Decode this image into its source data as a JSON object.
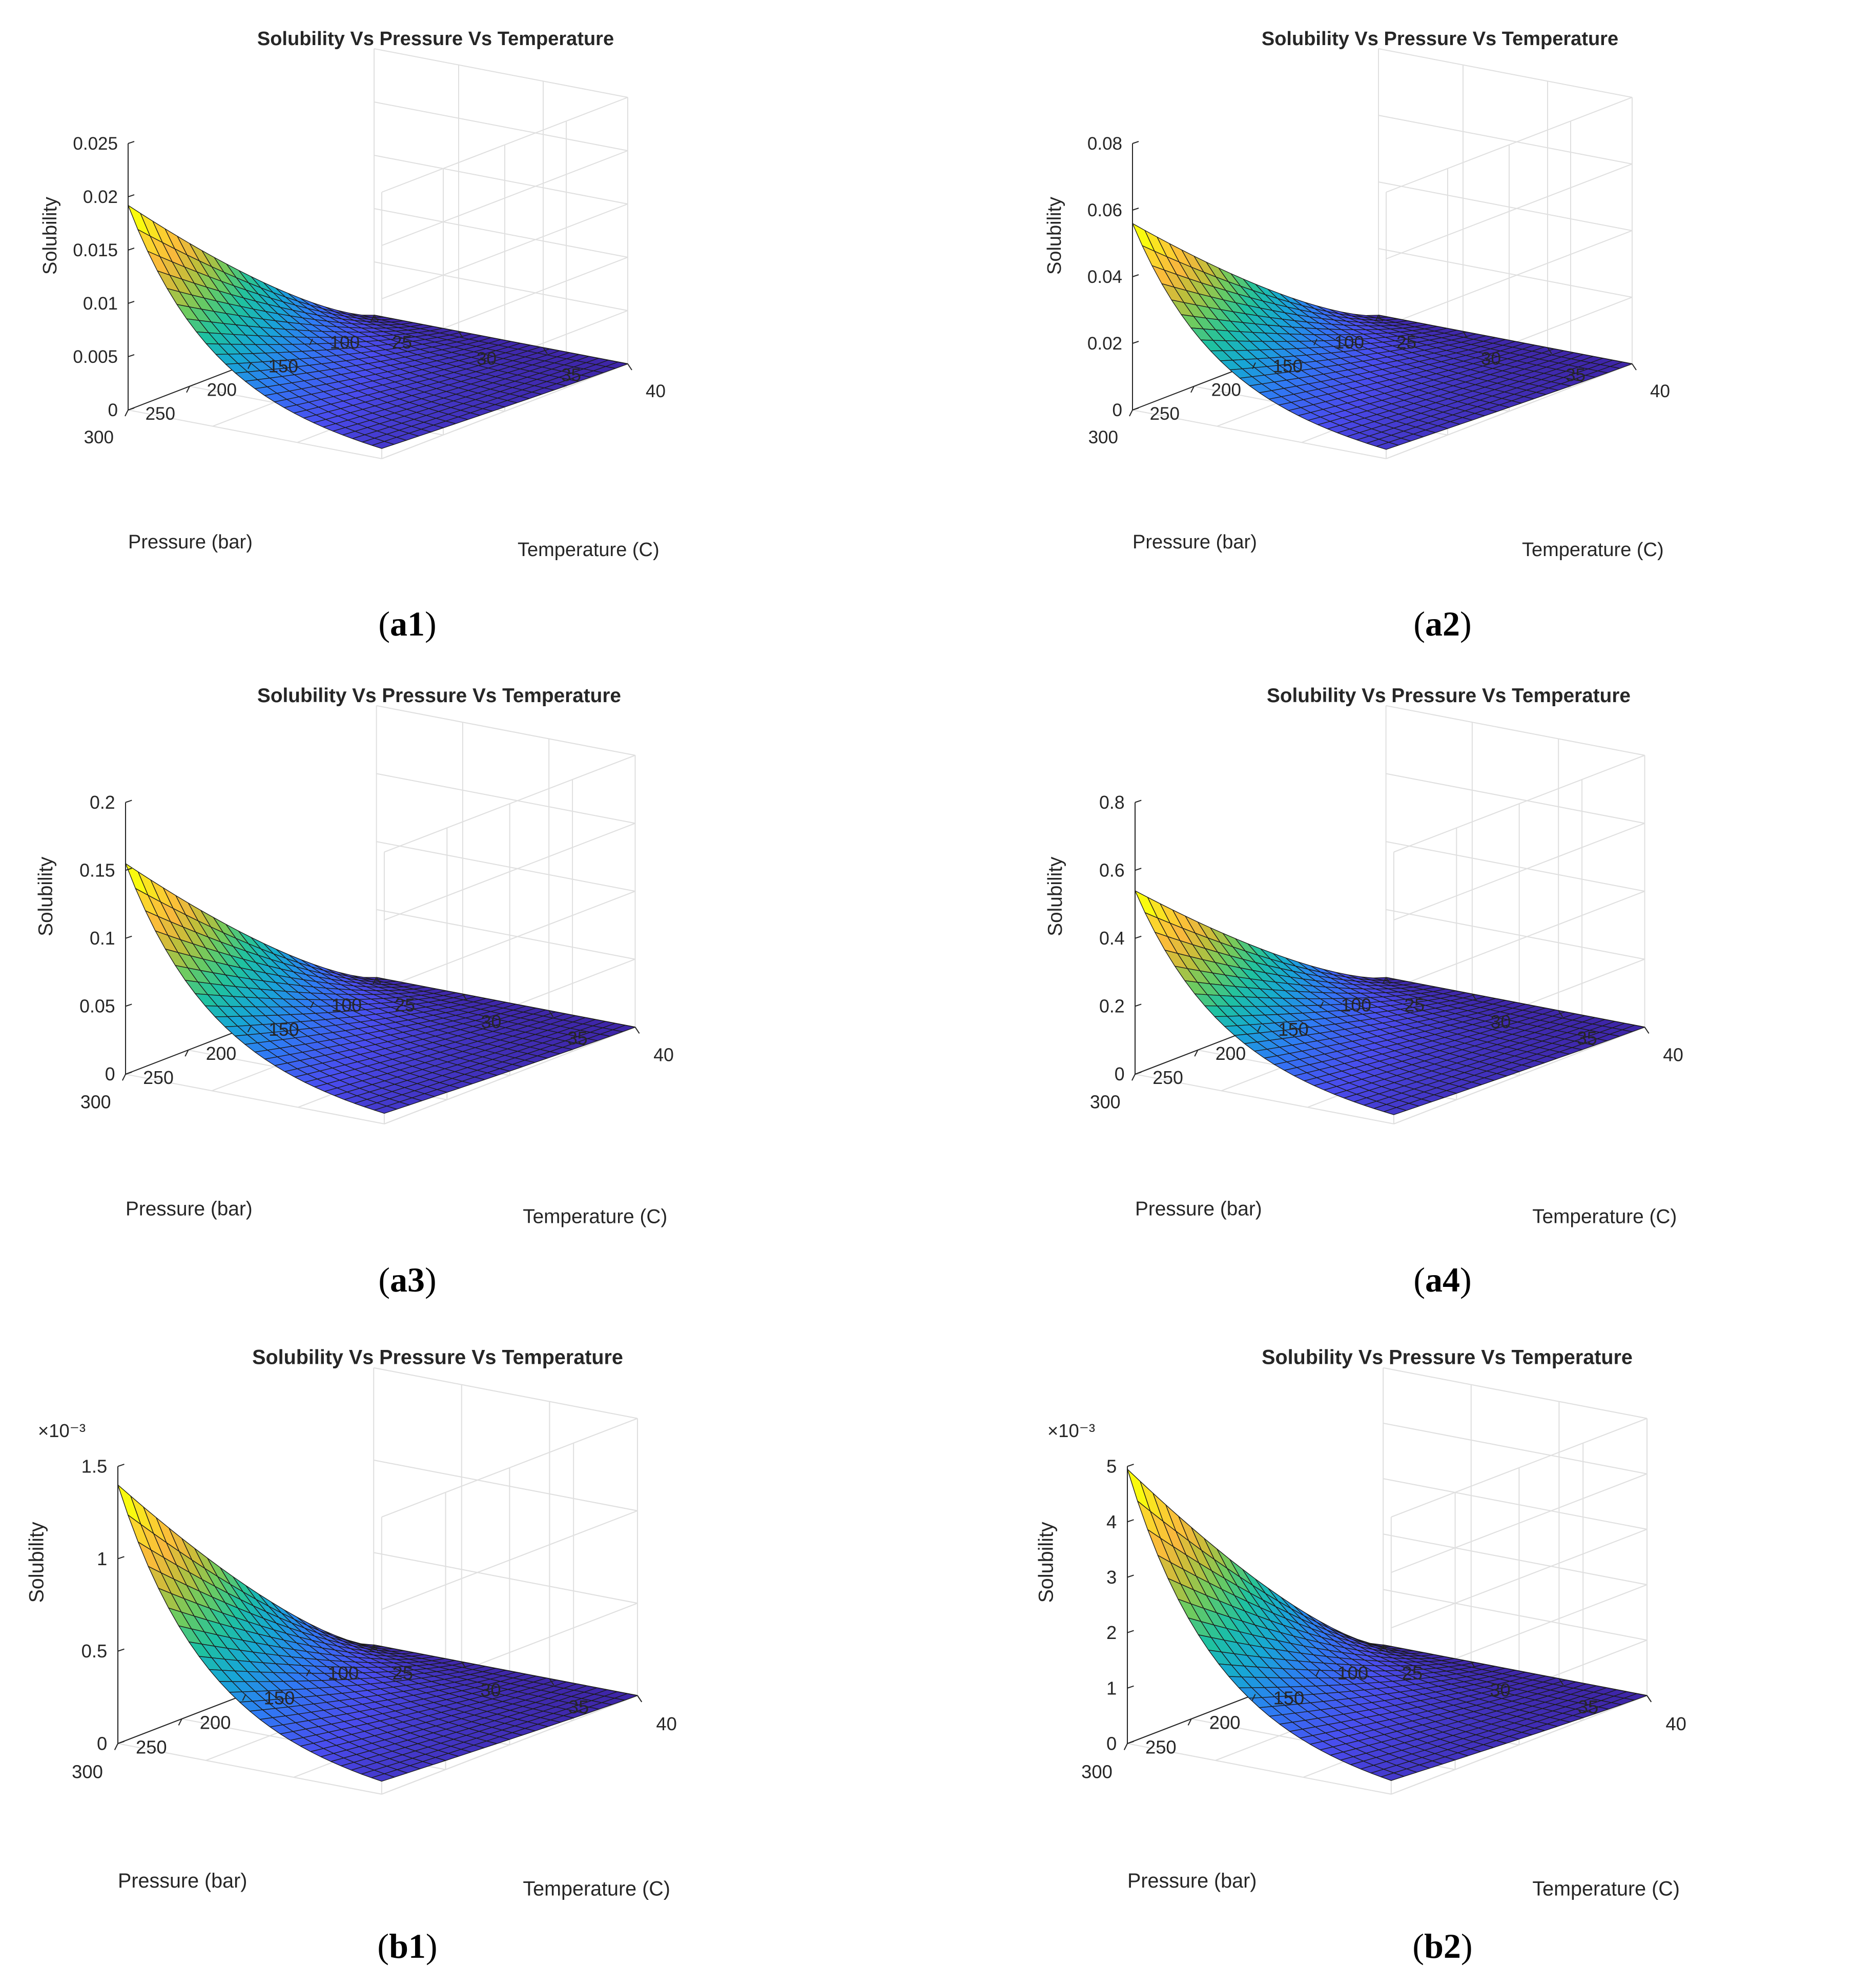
{
  "colors": {
    "colormap": [
      "#3e26a8",
      "#4a4cee",
      "#2f7bf4",
      "#17a7d5",
      "#1fc1a1",
      "#6bcb61",
      "#c1be3a",
      "#f9b93c",
      "#fbd42e",
      "#f9fb0e"
    ],
    "grid": "#dfdfdf",
    "axis": "#262626",
    "edge": "#1a1a1a"
  },
  "chart_data": [
    {
      "id": "a1",
      "type": "surface",
      "caption": "a1",
      "title": "Solubility Vs Pressure Vs Temperature",
      "xlabel": "Pressure (bar)",
      "ylabel": "Temperature (C)",
      "zlabel": "Solubility",
      "xlim": [
        100,
        300
      ],
      "ylim": [
        25,
        40
      ],
      "zlim": [
        0,
        0.025
      ],
      "xticks": [
        "100",
        "150",
        "200",
        "250",
        "300"
      ],
      "yticks": [
        "25",
        "30",
        "35",
        "40"
      ],
      "zticks": [
        "0",
        "0.005",
        "0.01",
        "0.015",
        "0.02",
        "0.025"
      ],
      "zexponent": "",
      "peak": 0.0192
    },
    {
      "id": "a2",
      "type": "surface",
      "caption": "a2",
      "title": "Solubility Vs Pressure Vs Temperature",
      "xlabel": "Pressure (bar)",
      "ylabel": "Temperature (C)",
      "zlabel": "Solubility",
      "xlim": [
        100,
        300
      ],
      "ylim": [
        25,
        40
      ],
      "zlim": [
        0,
        0.08
      ],
      "xticks": [
        "100",
        "150",
        "200",
        "250",
        "300"
      ],
      "yticks": [
        "25",
        "30",
        "35",
        "40"
      ],
      "zticks": [
        "0",
        "0.02",
        "0.04",
        "0.06",
        "0.08"
      ],
      "zexponent": "",
      "peak": 0.056
    },
    {
      "id": "a3",
      "type": "surface",
      "caption": "a3",
      "title": "Solubility Vs Pressure Vs Temperature",
      "xlabel": "Pressure (bar)",
      "ylabel": "Temperature (C)",
      "zlabel": "Solubility",
      "xlim": [
        100,
        300
      ],
      "ylim": [
        25,
        40
      ],
      "zlim": [
        0,
        0.2
      ],
      "xticks": [
        "100",
        "150",
        "200",
        "250",
        "300"
      ],
      "yticks": [
        "25",
        "30",
        "35",
        "40"
      ],
      "zticks": [
        "0",
        "0.05",
        "0.1",
        "0.15",
        "0.2"
      ],
      "zexponent": "",
      "peak": 0.155
    },
    {
      "id": "a4",
      "type": "surface",
      "caption": "a4",
      "title": "Solubility Vs Pressure Vs Temperature",
      "xlabel": "Pressure (bar)",
      "ylabel": "Temperature (C)",
      "zlabel": "Solubility",
      "xlim": [
        100,
        300
      ],
      "ylim": [
        25,
        40
      ],
      "zlim": [
        0,
        0.8
      ],
      "xticks": [
        "100",
        "150",
        "200",
        "250",
        "300"
      ],
      "yticks": [
        "25",
        "30",
        "35",
        "40"
      ],
      "zticks": [
        "0",
        "0.2",
        "0.4",
        "0.6",
        "0.8"
      ],
      "zexponent": "",
      "peak": 0.54
    },
    {
      "id": "b1",
      "type": "surface",
      "caption": "b1",
      "title": "Solubility Vs Pressure Vs Temperature",
      "xlabel": "Pressure (bar)",
      "ylabel": "Temperature (C)",
      "zlabel": "Solubility",
      "xlim": [
        100,
        300
      ],
      "ylim": [
        25,
        40
      ],
      "zlim": [
        0,
        1.5
      ],
      "xticks": [
        "100",
        "150",
        "200",
        "250",
        "300"
      ],
      "yticks": [
        "25",
        "30",
        "35",
        "40"
      ],
      "zticks": [
        "0",
        "0.5",
        "1",
        "1.5"
      ],
      "zexponent": "×10⁻³",
      "peak": 1.4
    },
    {
      "id": "b2",
      "type": "surface",
      "caption": "b2",
      "title": "Solubility Vs Pressure Vs Temperature",
      "xlabel": "Pressure (bar)",
      "ylabel": "Temperature (C)",
      "zlabel": "Solubility",
      "xlim": [
        100,
        300
      ],
      "ylim": [
        25,
        40
      ],
      "zlim": [
        0,
        5
      ],
      "xticks": [
        "100",
        "150",
        "200",
        "250",
        "300"
      ],
      "yticks": [
        "25",
        "30",
        "35",
        "40"
      ],
      "zticks": [
        "0",
        "1",
        "2",
        "3",
        "4",
        "5"
      ],
      "zexponent": "×10⁻³",
      "peak": 4.95
    }
  ]
}
